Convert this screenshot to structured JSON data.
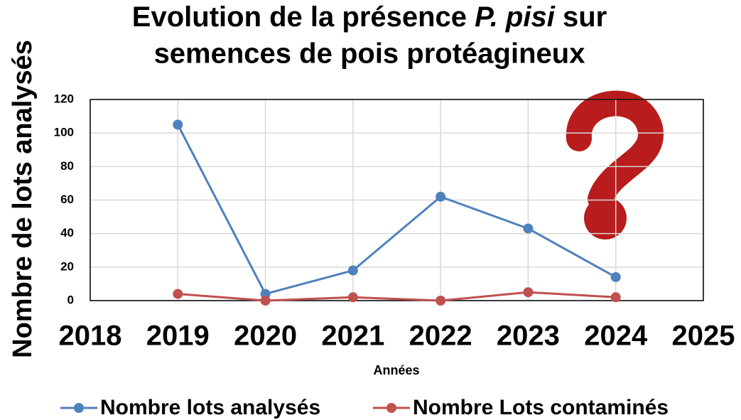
{
  "chart_data": {
    "type": "line",
    "title": [
      "Evolution de la présence ",
      "P. pisi",
      " sur",
      "semences de pois protéagineux"
    ],
    "x_label": "Années",
    "y_label": "Nombre de lots analysés",
    "x": [
      2019,
      2020,
      2021,
      2022,
      2023,
      2024
    ],
    "series": [
      {
        "name": "Nombre lots analysés",
        "color": "#4f81bd",
        "values": [
          105,
          4,
          18,
          62,
          43,
          14
        ]
      },
      {
        "name": "Nombre Lots contaminés",
        "color": "#c0504d",
        "values": [
          4,
          0,
          2,
          0,
          5,
          2
        ]
      }
    ],
    "xlim": [
      2018,
      2025
    ],
    "xticks": [
      2018,
      2019,
      2020,
      2021,
      2022,
      2023,
      2024,
      2025
    ],
    "ylim": [
      0,
      120
    ],
    "yticks": [
      0,
      20,
      40,
      60,
      80,
      100,
      120
    ],
    "grid": true,
    "legend": "bottom"
  }
}
